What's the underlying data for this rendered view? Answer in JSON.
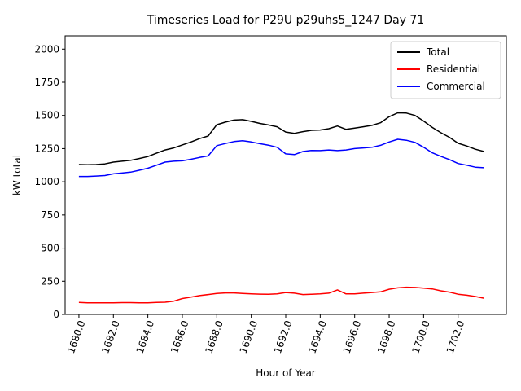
{
  "chart_data": {
    "type": "line",
    "title": "Timeseries Load for P29U p29uhs5_1247  Day 71",
    "xlabel": "Hour of Year",
    "ylabel": "kW total",
    "xlim": [
      1679.2,
      1704.8
    ],
    "ylim": [
      0,
      2100
    ],
    "xticks": [
      1680,
      1682,
      1684,
      1686,
      1688,
      1690,
      1692,
      1694,
      1696,
      1698,
      1700,
      1702
    ],
    "xtick_labels": [
      "1680.0",
      "1682.0",
      "1684.0",
      "1686.0",
      "1688.0",
      "1690.0",
      "1692.0",
      "1694.0",
      "1696.0",
      "1698.0",
      "1700.0",
      "1702.0"
    ],
    "yticks": [
      0,
      250,
      500,
      750,
      1000,
      1250,
      1500,
      1750,
      2000
    ],
    "ytick_labels": [
      "0",
      "250",
      "500",
      "750",
      "1000",
      "1250",
      "1500",
      "1750",
      "2000"
    ],
    "legend_position": "top-right",
    "x": [
      1680,
      1680.5,
      1681,
      1681.5,
      1682,
      1682.5,
      1683,
      1683.5,
      1684,
      1684.5,
      1685,
      1685.5,
      1686,
      1686.5,
      1687,
      1687.5,
      1688,
      1688.5,
      1689,
      1689.5,
      1690,
      1690.5,
      1691,
      1691.5,
      1692,
      1692.5,
      1693,
      1693.5,
      1694,
      1694.5,
      1695,
      1695.5,
      1696,
      1696.5,
      1697,
      1697.5,
      1698,
      1698.5,
      1699,
      1699.5,
      1700,
      1700.5,
      1701,
      1701.5,
      1702,
      1702.5,
      1703,
      1703.5
    ],
    "series": [
      {
        "name": "Total",
        "color": "#000000",
        "values": [
          1130,
          1128,
          1130,
          1135,
          1148,
          1155,
          1162,
          1175,
          1190,
          1215,
          1240,
          1255,
          1278,
          1300,
          1325,
          1345,
          1430,
          1450,
          1465,
          1468,
          1455,
          1440,
          1428,
          1415,
          1375,
          1365,
          1378,
          1388,
          1390,
          1400,
          1420,
          1395,
          1405,
          1415,
          1425,
          1445,
          1490,
          1520,
          1518,
          1500,
          1458,
          1410,
          1370,
          1335,
          1290,
          1270,
          1245,
          1228
        ]
      },
      {
        "name": "Residential",
        "color": "#ff0000",
        "values": [
          90,
          88,
          87,
          88,
          88,
          89,
          89,
          88,
          88,
          90,
          92,
          100,
          120,
          130,
          142,
          150,
          158,
          162,
          162,
          158,
          155,
          153,
          152,
          155,
          165,
          160,
          150,
          152,
          155,
          160,
          185,
          155,
          155,
          160,
          165,
          170,
          190,
          200,
          205,
          203,
          198,
          192,
          178,
          168,
          152,
          145,
          135,
          122
        ]
      },
      {
        "name": "Commercial",
        "color": "#0000ff",
        "values": [
          1040,
          1040,
          1043,
          1047,
          1060,
          1066,
          1073,
          1087,
          1102,
          1125,
          1148,
          1155,
          1158,
          1170,
          1183,
          1195,
          1272,
          1288,
          1303,
          1310,
          1300,
          1287,
          1276,
          1260,
          1210,
          1205,
          1228,
          1236,
          1235,
          1240,
          1235,
          1240,
          1250,
          1255,
          1260,
          1275,
          1300,
          1320,
          1313,
          1297,
          1260,
          1218,
          1192,
          1167,
          1138,
          1125,
          1110,
          1106
        ]
      }
    ]
  }
}
